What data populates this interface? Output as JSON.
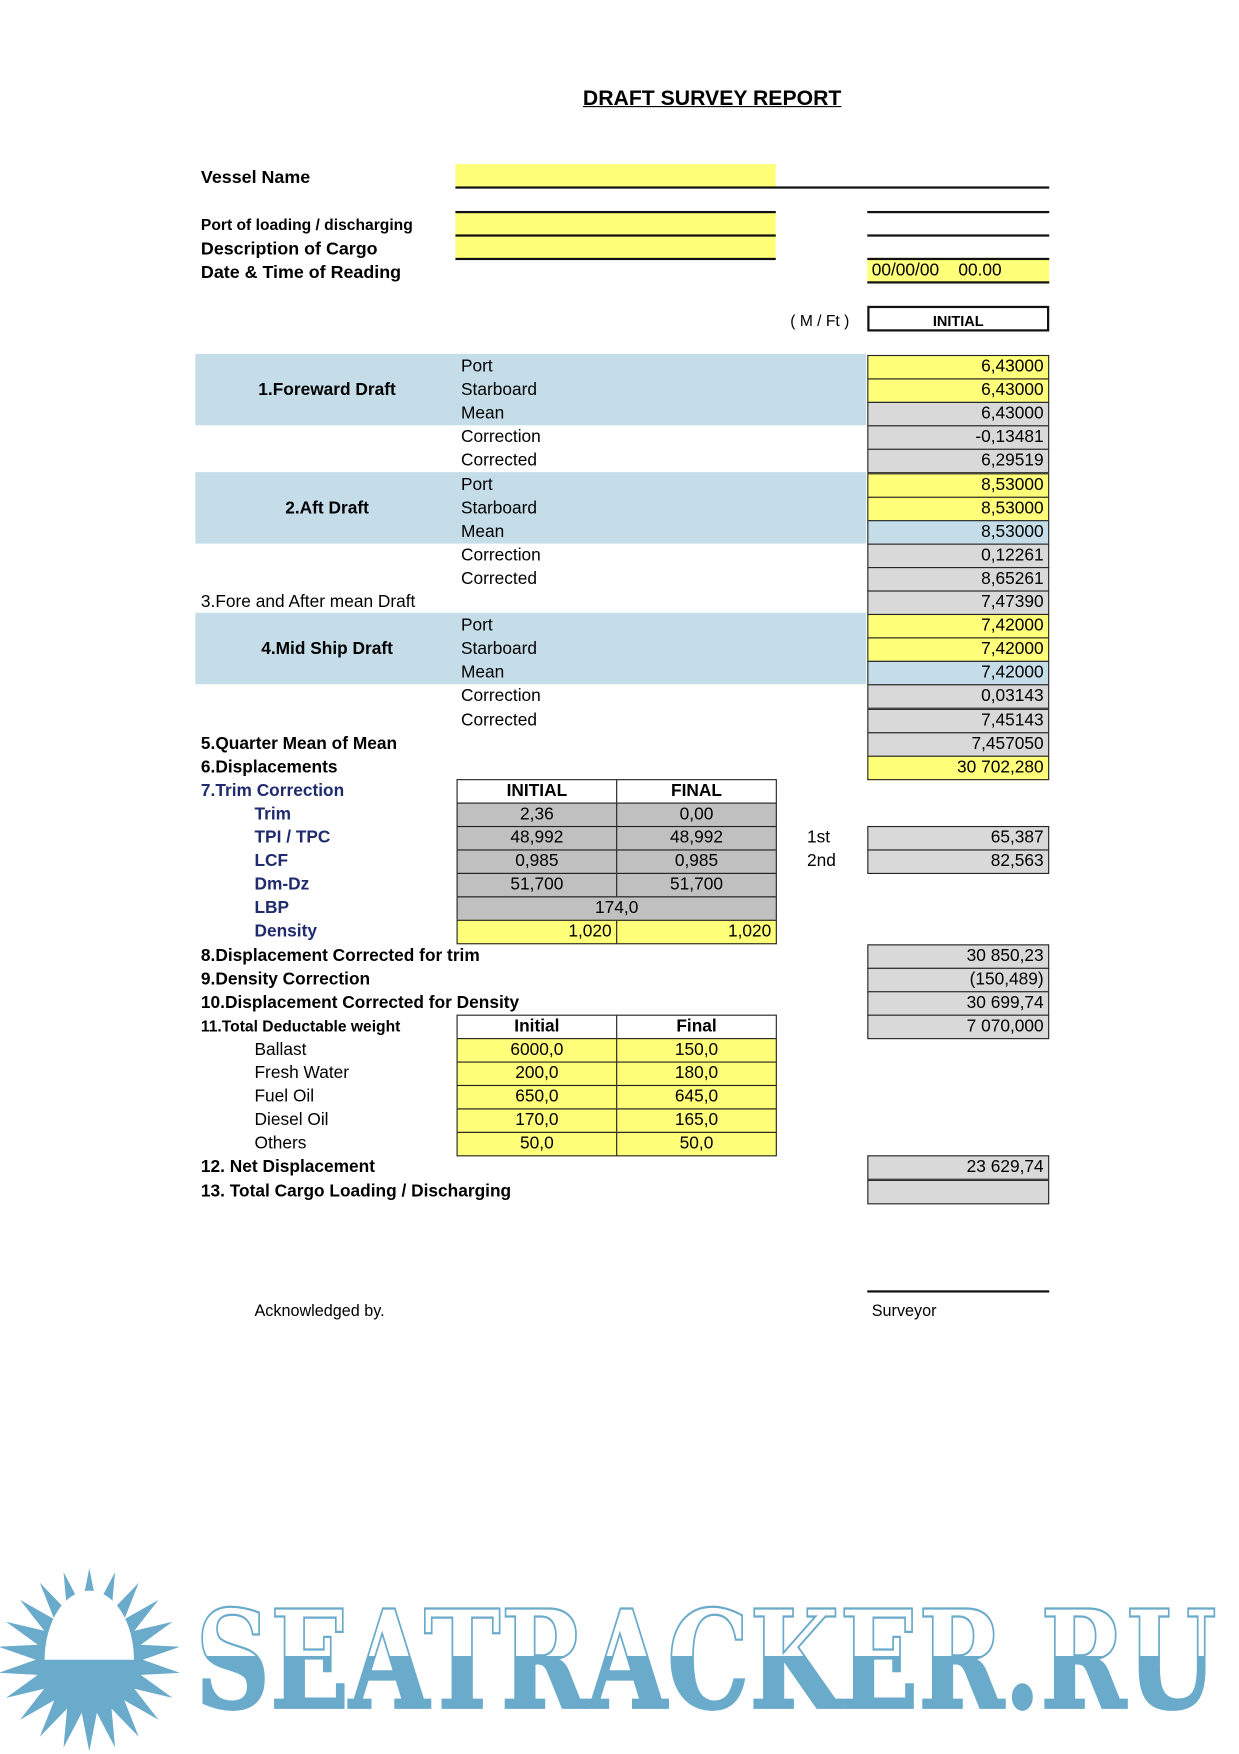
{
  "header": {
    "title": "DRAFT SURVEY REPORT",
    "vessel_name_label": "Vessel Name",
    "vessel_name_value": "",
    "port_label": "Port of loading / discharging",
    "port_value": "",
    "cargo_label": "Description of Cargo",
    "cargo_value": "",
    "date_label": "Date & Time of Reading",
    "date_value": "00/00/00    00.00",
    "unit_label": "( M / Ft )",
    "column_label": "INITIAL"
  },
  "sections": [
    {
      "row": 1,
      "label": "1.Foreward Draft",
      "bold": true,
      "centered": true
    },
    {
      "row": 6,
      "label": "2.Aft Draft",
      "bold": true,
      "centered": true
    },
    {
      "row": 10,
      "label": "3.Fore and After mean Draft",
      "bold": false,
      "centered": false
    },
    {
      "row": 12,
      "label": "4.Mid Ship Draft",
      "bold": true,
      "centered": true
    },
    {
      "row": 16,
      "label": "5.Quarter Mean of Mean",
      "bold": true,
      "centered": false
    },
    {
      "row": 17,
      "label": "6.Displacements",
      "bold": true,
      "centered": false
    }
  ],
  "draft_rows": [
    {
      "label": "Port",
      "value": "6,43000",
      "cell": "input"
    },
    {
      "label": "Starboard",
      "value": "6,43000",
      "cell": "input"
    },
    {
      "label": "Mean",
      "value": "6,43000",
      "cell": "calculated"
    },
    {
      "label": "Correction",
      "value": "-0,13481",
      "cell": "calculated"
    },
    {
      "label": "Corrected",
      "value": "6,29519",
      "cell": "calculated"
    },
    {
      "label": "Port",
      "value": "8,53000",
      "cell": "input"
    },
    {
      "label": "Starboard",
      "value": "8,53000",
      "cell": "input"
    },
    {
      "label": "Mean",
      "value": "8,53000",
      "cell": "highlight"
    },
    {
      "label": "Correction",
      "value": "0,12261",
      "cell": "calculated"
    },
    {
      "label": "Corrected",
      "value": "8,65261",
      "cell": "calculated"
    },
    {
      "label": "",
      "value": "7,47390",
      "cell": "calculated"
    },
    {
      "label": "Port",
      "value": "7,42000",
      "cell": "input"
    },
    {
      "label": "Starboard",
      "value": "7,42000",
      "cell": "input"
    },
    {
      "label": "Mean",
      "value": "7,42000",
      "cell": "highlight"
    },
    {
      "label": "Correction",
      "value": "0,03143",
      "cell": "calculated"
    },
    {
      "label": "Corrected",
      "value": "7,45143",
      "cell": "calculated"
    },
    {
      "label": "",
      "value": "7,457050",
      "cell": "calculated"
    },
    {
      "label": "",
      "value": "30 702,280",
      "cell": "input"
    }
  ],
  "trim": {
    "title": "7.Trim Correction",
    "columns": [
      "INITIAL",
      "FINAL"
    ],
    "rows": [
      {
        "label": "Trim",
        "initial": "2,36",
        "final": "0,00"
      },
      {
        "label": "TPI / TPC",
        "initial": "48,992",
        "final": "48,992"
      },
      {
        "label": "LCF",
        "initial": "0,985",
        "final": "0,985"
      },
      {
        "label": "Dm-Dz",
        "initial": "51,700",
        "final": "51,700"
      }
    ],
    "lbp_label": "LBP",
    "lbp_value": "174,0",
    "density_label": "Density",
    "density_initial": "1,020",
    "density_final": "1,020",
    "moments": [
      {
        "label": "1st",
        "value": "65,387"
      },
      {
        "label": "2nd",
        "value": "82,563"
      }
    ]
  },
  "results": [
    {
      "label": "8.Displacement Corrected for trim",
      "value": "30 850,23"
    },
    {
      "label": "9.Density Correction",
      "value": "(150,489)"
    },
    {
      "label": "10.Displacement Corrected for Density",
      "value": "30 699,74"
    },
    {
      "label": "11.Total Deductable weight",
      "value": "7 070,000"
    }
  ],
  "deductibles": {
    "columns": [
      "Initial",
      "Final"
    ],
    "rows": [
      {
        "label": "Ballast",
        "initial": "6000,0",
        "final": "150,0"
      },
      {
        "label": "Fresh Water",
        "initial": "200,0",
        "final": "180,0"
      },
      {
        "label": "Fuel Oil",
        "initial": "650,0",
        "final": "645,0"
      },
      {
        "label": "Diesel Oil",
        "initial": "170,0",
        "final": "165,0"
      },
      {
        "label": "Others",
        "initial": "50,0",
        "final": "50,0"
      }
    ]
  },
  "net_displacement": {
    "label": "12. Net Displacement",
    "value": "23 629,74"
  },
  "total_cargo": {
    "label": "13. Total Cargo Loading / Discharging",
    "value": ""
  },
  "footer": {
    "acknowledged_label": "Acknowledged by.",
    "surveyor_label": "Surveyor"
  },
  "logo": {
    "text": "SEATRACKER.RU",
    "color": "#6aaacb"
  },
  "colors": {
    "input": "#ffff7a",
    "calculated": "#d9d9d9",
    "highlight": "#c5dde8",
    "table": "#c0c0c0"
  }
}
